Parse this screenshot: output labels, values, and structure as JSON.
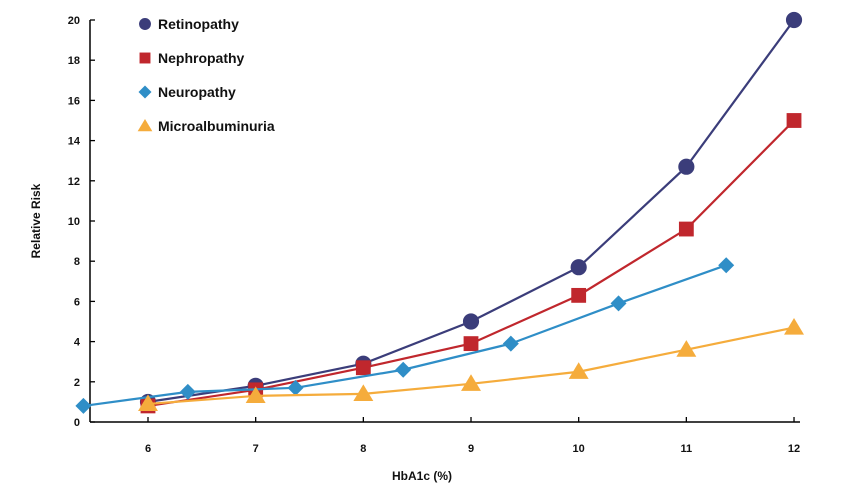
{
  "chart_data": {
    "type": "line",
    "xlabel": "HbA1c (%)",
    "ylabel": "Relative Risk",
    "xlim": [
      5.4,
      12
    ],
    "ylim": [
      0,
      20
    ],
    "x_ticks": [
      6,
      7,
      8,
      9,
      10,
      11,
      12
    ],
    "y_ticks": [
      0,
      2,
      4,
      6,
      8,
      10,
      12,
      14,
      16,
      18,
      20
    ],
    "grid": false,
    "legend_position": "top-left",
    "series": [
      {
        "name": "Retinopathy",
        "color": "#3b3d7a",
        "marker": "circle",
        "points": [
          [
            6,
            1.0
          ],
          [
            7,
            1.8
          ],
          [
            8,
            2.9
          ],
          [
            9,
            5.0
          ],
          [
            10,
            7.7
          ],
          [
            11,
            12.7
          ],
          [
            12,
            20.0
          ]
        ]
      },
      {
        "name": "Nephropathy",
        "color": "#c0272d",
        "marker": "square",
        "points": [
          [
            6,
            0.8
          ],
          [
            7,
            1.6
          ],
          [
            8,
            2.7
          ],
          [
            9,
            3.9
          ],
          [
            10,
            6.3
          ],
          [
            11,
            9.6
          ],
          [
            12,
            15.0
          ]
        ]
      },
      {
        "name": "Neuropathy",
        "color": "#2f8ec7",
        "marker": "diamond",
        "points": [
          [
            5.4,
            0.8
          ],
          [
            6.37,
            1.5
          ],
          [
            7.37,
            1.7
          ],
          [
            8.37,
            2.6
          ],
          [
            9.37,
            3.9
          ],
          [
            10.37,
            5.9
          ],
          [
            11.37,
            7.8
          ]
        ]
      },
      {
        "name": "Microalbuminuria",
        "color": "#f5ac3c",
        "marker": "triangle",
        "points": [
          [
            6,
            0.9
          ],
          [
            7,
            1.3
          ],
          [
            8,
            1.4
          ],
          [
            9,
            1.9
          ],
          [
            10,
            2.5
          ],
          [
            11,
            3.6
          ],
          [
            12,
            4.7
          ]
        ]
      }
    ]
  }
}
